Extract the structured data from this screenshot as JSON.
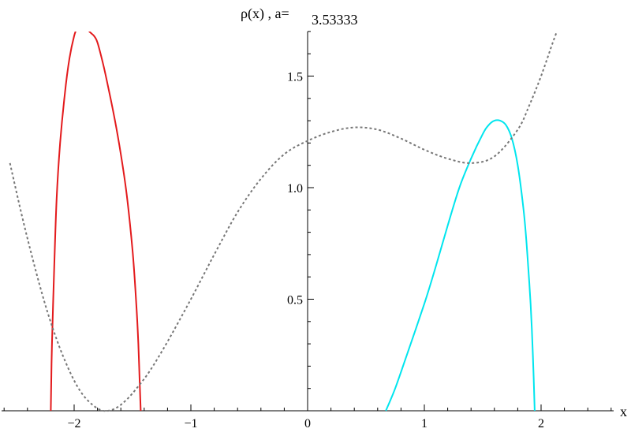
{
  "chart_data": {
    "type": "line",
    "title": "ρ(x) , a=",
    "title_value": "3.53333",
    "xlabel": "x",
    "ylabel": "",
    "xlim": [
      -2.65,
      2.65
    ],
    "ylim": [
      0,
      1.7
    ],
    "grid": false,
    "x_ticks": [
      {
        "value": -2,
        "label": "−2"
      },
      {
        "value": -1,
        "label": "−1"
      },
      {
        "value": 0,
        "label": "0"
      },
      {
        "value": 1,
        "label": "1"
      },
      {
        "value": 2,
        "label": "2"
      }
    ],
    "y_ticks": [
      {
        "value": 0.5,
        "label": "0.5"
      },
      {
        "value": 1.0,
        "label": "1.0"
      },
      {
        "value": 1.5,
        "label": "1.5"
      }
    ],
    "series": [
      {
        "style": "solid",
        "color": "#e31a1c",
        "x": [
          -2.2,
          -2.19,
          -2.17,
          -2.15,
          -2.12,
          -2.08,
          -2.04,
          -2.0,
          -1.97,
          -1.95,
          -1.93,
          -1.9,
          -1.87,
          -1.85,
          -1.83,
          -1.8,
          -1.75,
          -1.7,
          -1.65,
          -1.6,
          -1.55,
          -1.5,
          -1.47,
          -1.45,
          -1.44,
          -1.43
        ],
        "y": [
          0.0,
          0.3,
          0.65,
          0.95,
          1.2,
          1.42,
          1.58,
          1.68,
          1.72,
          1.73,
          1.73,
          1.72,
          1.7,
          1.69,
          1.68,
          1.65,
          1.55,
          1.43,
          1.3,
          1.15,
          0.97,
          0.72,
          0.5,
          0.3,
          0.15,
          0.0
        ]
      },
      {
        "style": "solid",
        "color": "#00e5ee",
        "x": [
          0.67,
          0.75,
          0.85,
          1.0,
          1.1,
          1.2,
          1.3,
          1.4,
          1.5,
          1.55,
          1.6,
          1.65,
          1.7,
          1.75,
          1.8,
          1.85,
          1.88,
          1.91,
          1.93,
          1.945
        ],
        "y": [
          0.0,
          0.1,
          0.25,
          0.48,
          0.65,
          0.83,
          1.0,
          1.13,
          1.24,
          1.28,
          1.3,
          1.3,
          1.28,
          1.22,
          1.1,
          0.9,
          0.72,
          0.48,
          0.25,
          0.0
        ]
      },
      {
        "style": "dotted",
        "color": "#777777",
        "x": [
          -2.55,
          -2.45,
          -2.35,
          -2.25,
          -2.15,
          -2.05,
          -1.95,
          -1.85,
          -1.75,
          -1.65,
          -1.55,
          -1.45,
          -1.35,
          -1.2,
          -1.0,
          -0.8,
          -0.6,
          -0.4,
          -0.2,
          0.0,
          0.2,
          0.4,
          0.6,
          0.8,
          1.0,
          1.2,
          1.4,
          1.6,
          1.8,
          1.9,
          2.0,
          2.1,
          2.15
        ],
        "y": [
          1.11,
          0.88,
          0.67,
          0.48,
          0.32,
          0.19,
          0.09,
          0.03,
          0.0,
          0.01,
          0.05,
          0.11,
          0.18,
          0.31,
          0.5,
          0.7,
          0.89,
          1.04,
          1.15,
          1.21,
          1.25,
          1.27,
          1.26,
          1.22,
          1.17,
          1.13,
          1.11,
          1.14,
          1.26,
          1.37,
          1.5,
          1.65,
          1.72
        ]
      }
    ]
  }
}
